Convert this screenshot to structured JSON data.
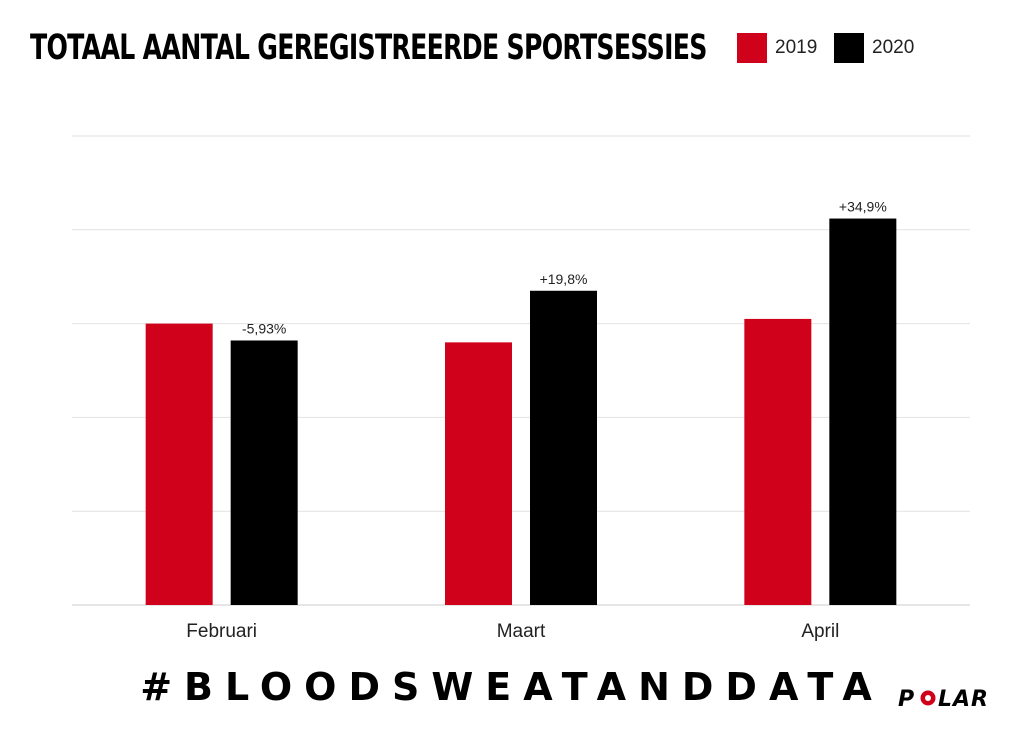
{
  "chart_data": {
    "type": "bar",
    "title": "TOTAAL AANTAL GEREGISTREERDE SPORTSESSIES",
    "categories": [
      "Februari",
      "Maart",
      "April"
    ],
    "series": [
      {
        "name": "2019",
        "color": "#d0021b",
        "values": [
          3.0,
          2.8,
          3.05
        ]
      },
      {
        "name": "2020",
        "color": "#000000",
        "values": [
          2.82,
          3.35,
          4.12
        ]
      }
    ],
    "annotations": [
      "-5,93%",
      "+19,8%",
      "+34,9%"
    ],
    "ylim": [
      0,
      5
    ],
    "grid": true,
    "y_tick_labels_shown": false,
    "legend": "top-right"
  },
  "footer": {
    "hashtag": "#BLOODSWEATANDDATA",
    "logo_text": "POLAR",
    "logo_accent": "#d0021b"
  }
}
